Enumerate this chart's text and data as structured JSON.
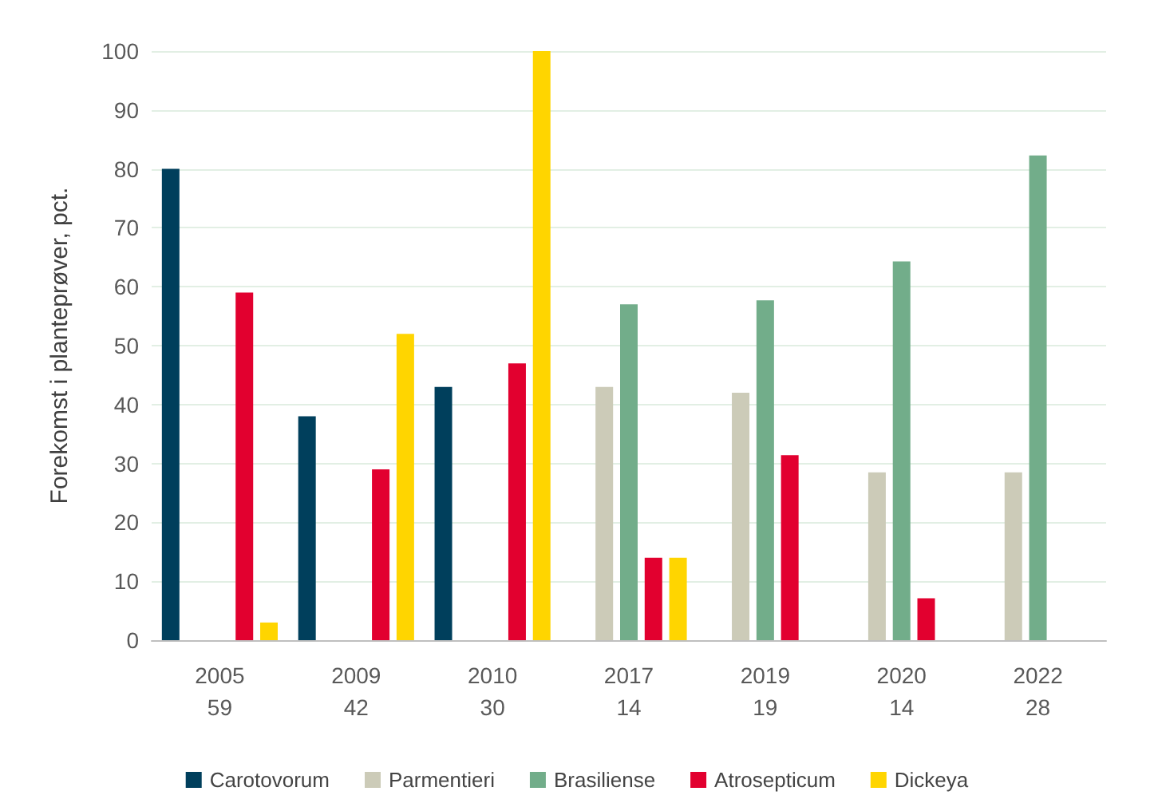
{
  "chart_data": {
    "type": "bar",
    "ylabel": "Forekomst i planteprøver, pct.",
    "categories": [
      "2005\n59",
      "2009\n42",
      "2010\n30",
      "2017\n14",
      "2019\n19",
      "2020\n14",
      "2022\n28"
    ],
    "series": [
      {
        "name": "Carotovorum",
        "color": "#003f5c",
        "values": [
          80,
          38,
          43,
          null,
          null,
          null,
          null
        ]
      },
      {
        "name": "Parmentieri",
        "color": "#cccbb8",
        "values": [
          null,
          null,
          null,
          43,
          42,
          28.5,
          28.5
        ]
      },
      {
        "name": "Brasiliense",
        "color": "#72ad8a",
        "values": [
          null,
          null,
          null,
          57,
          57.7,
          64.3,
          82.3
        ]
      },
      {
        "name": "Atrosepticum",
        "color": "#e2002f",
        "values": [
          59,
          29,
          47,
          14,
          31.4,
          7.1,
          null
        ]
      },
      {
        "name": "Dickeya",
        "color": "#ffd500",
        "values": [
          3,
          52,
          100,
          14,
          null,
          null,
          null
        ]
      }
    ],
    "ylim": [
      0,
      100
    ],
    "yticks": [
      0,
      10,
      20,
      30,
      40,
      50,
      60,
      70,
      80,
      90,
      100
    ],
    "grid": "y",
    "legend": "bottom"
  }
}
